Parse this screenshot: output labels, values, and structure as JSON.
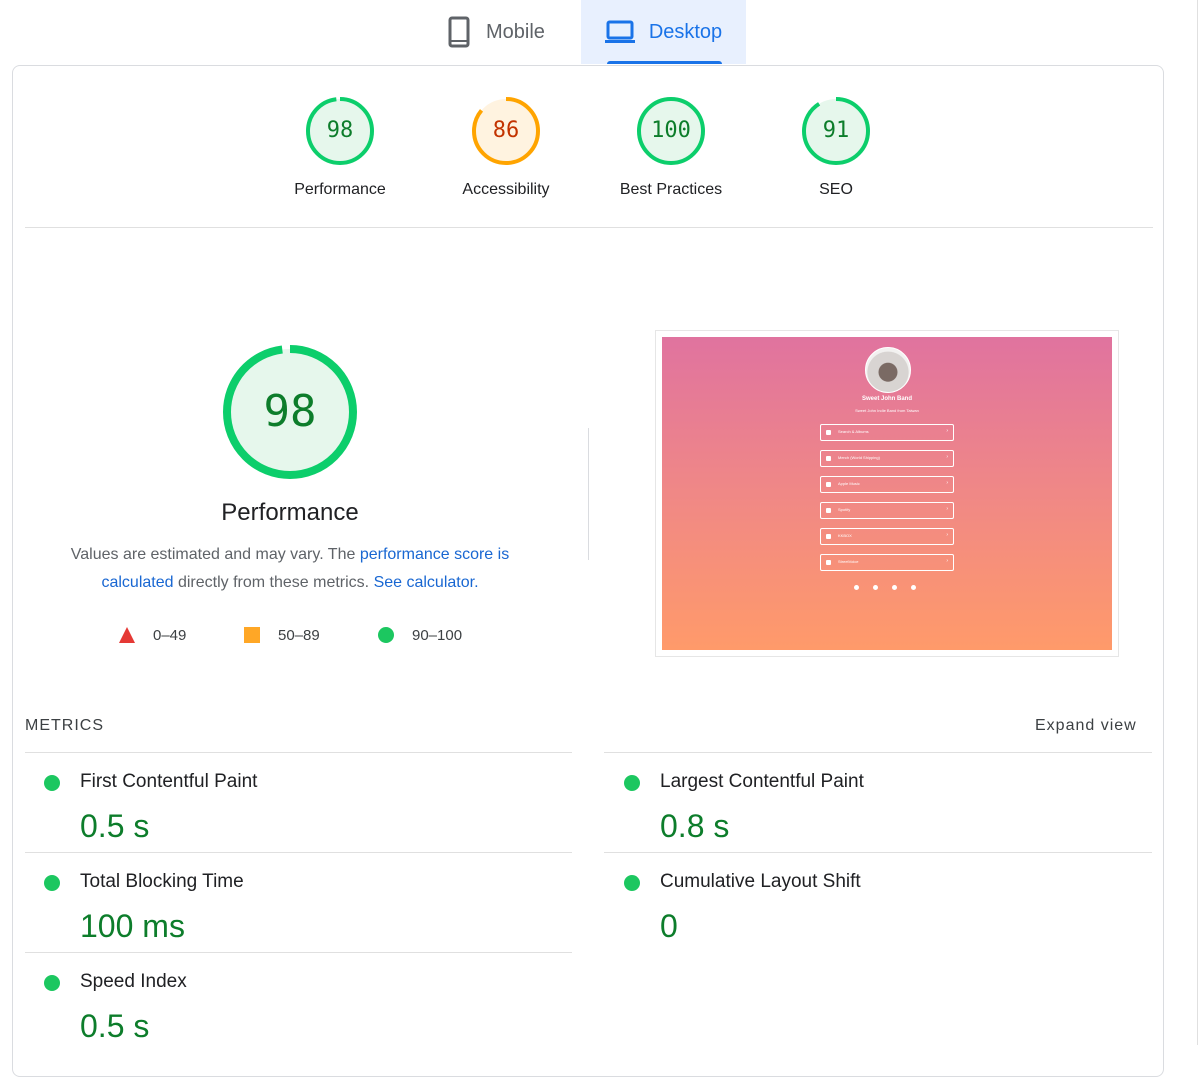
{
  "tabs": [
    {
      "label": "Mobile",
      "icon": "mobile-phone-icon",
      "active": false
    },
    {
      "label": "Desktop",
      "icon": "laptop-icon",
      "active": true
    }
  ],
  "categories": [
    {
      "label": "Performance",
      "score": "98",
      "fraction": 0.98,
      "color": "#0cce6b",
      "text_color": "#0d7d2b",
      "fill": "#e6f7ec"
    },
    {
      "label": "Accessibility",
      "score": "86",
      "fraction": 0.86,
      "color": "#ffa400",
      "text_color": "#c33300",
      "fill": "#fff3e0"
    },
    {
      "label": "Best Practices",
      "score": "100",
      "fraction": 1.0,
      "color": "#0cce6b",
      "text_color": "#0d7d2b",
      "fill": "#e6f7ec"
    },
    {
      "label": "SEO",
      "score": "91",
      "fraction": 0.91,
      "color": "#0cce6b",
      "text_color": "#0d7d2b",
      "fill": "#e6f7ec"
    }
  ],
  "performance": {
    "score": "98",
    "fraction": 0.98,
    "title": "Performance",
    "desc_before": "Values are estimated and may vary. The ",
    "desc_link1": "performance score is calculated",
    "desc_middle": " directly from these metrics. ",
    "desc_link2": "See calculator.",
    "legend": [
      {
        "shape": "triangle",
        "range": "0–49",
        "color": "#e53935"
      },
      {
        "shape": "square",
        "range": "50–89",
        "color": "#ffa726"
      },
      {
        "shape": "circle",
        "range": "90–100",
        "color": "#1cc760"
      }
    ]
  },
  "screenshot": {
    "site_title": "Sweet John Band",
    "site_subtitle": "Sweet John Indie Band from Taiwan",
    "links": [
      "Search & Albums",
      "Merch (World Shipping)",
      "Apple Music",
      "Spotify",
      "KKBOX",
      "StreetVoice"
    ]
  },
  "metrics": {
    "title": "METRICS",
    "expand_label": "Expand view",
    "items": [
      {
        "name": "First Contentful Paint",
        "value": "0.5 s"
      },
      {
        "name": "Largest Contentful Paint",
        "value": "0.8 s"
      },
      {
        "name": "Total Blocking Time",
        "value": "100 ms"
      },
      {
        "name": "Cumulative Layout Shift",
        "value": "0"
      },
      {
        "name": "Speed Index",
        "value": "0.5 s"
      }
    ]
  },
  "colors": {
    "pass": "#0cce6b",
    "pass_text": "#0d7d2b",
    "average": "#ffa400",
    "average_text": "#c33300",
    "link": "#1967d2",
    "tab_active_bg": "#e8f0fe",
    "tab_active": "#1a73e8"
  }
}
